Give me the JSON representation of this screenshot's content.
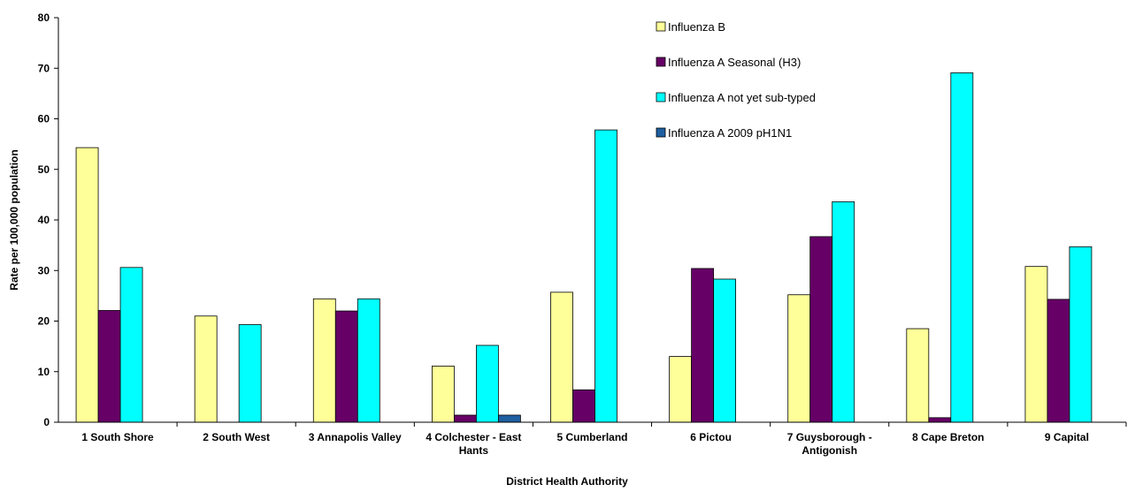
{
  "chart_data": {
    "type": "bar",
    "x_label": "District Health Authority",
    "y_label": "Rate per 100,000 population",
    "categories": [
      "1 South Shore",
      "2 South West",
      "3 Annapolis Valley",
      "4 Colchester - East Hants",
      "5 Cumberland",
      "6 Pictou",
      "7 Guysborough - Antigonish",
      "8 Cape Breton",
      "9 Capital"
    ],
    "series": [
      {
        "name": "Influenza B",
        "color": "#ffff99",
        "values": [
          54.3,
          21.0,
          24.4,
          11.1,
          25.7,
          13.0,
          25.2,
          18.5,
          30.8
        ]
      },
      {
        "name": "Influenza A Seasonal (H3)",
        "color": "#660066",
        "values": [
          22.1,
          0,
          22.0,
          1.4,
          6.4,
          30.4,
          36.7,
          0.9,
          24.3
        ]
      },
      {
        "name": "Influenza A not yet sub-typed",
        "color": "#00ffff",
        "values": [
          30.6,
          19.3,
          24.4,
          15.2,
          57.8,
          28.3,
          43.6,
          69.1,
          34.7
        ]
      },
      {
        "name": "Influenza A 2009 pH1N1",
        "color": "#1f5f9f",
        "values": [
          0,
          0,
          0,
          1.4,
          0,
          0,
          0,
          0,
          0
        ]
      }
    ],
    "ylim": [
      0,
      80
    ],
    "yticks": [
      0,
      10,
      20,
      30,
      40,
      50,
      60,
      70,
      80
    ],
    "grid": false,
    "legend": "upper right"
  }
}
